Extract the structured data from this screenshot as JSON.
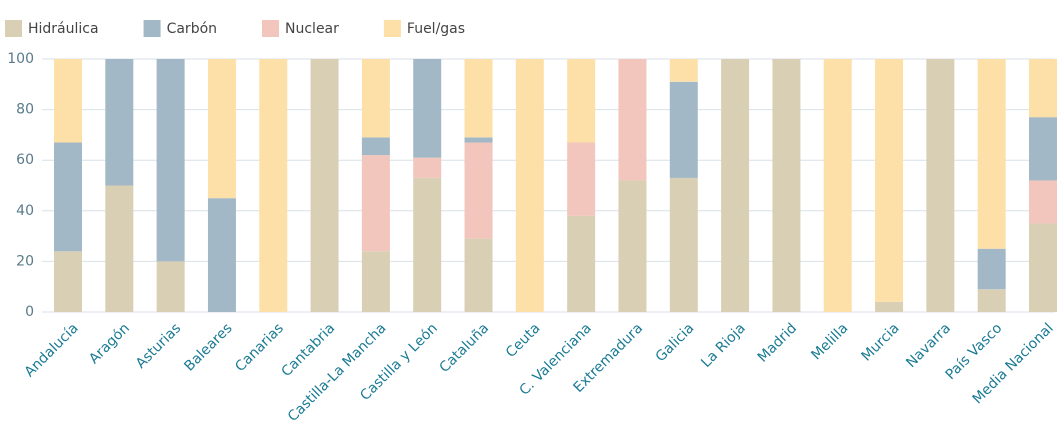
{
  "chart_data": {
    "type": "stacked_bar",
    "categories": [
      "Andalucía",
      "Aragón",
      "Asturias",
      "Baleares",
      "Canarias",
      "Cantabria",
      "Castilla-La Mancha",
      "Castilla y León",
      "Cataluña",
      "Ceuta",
      "C. Valenciana",
      "Extremadura",
      "Galicia",
      "La Rioja",
      "Madrid",
      "Melilla",
      "Murcia",
      "Navarra",
      "País Vasco",
      "Media  Nacional"
    ],
    "series": [
      {
        "name": "Hidráulica",
        "color": "#d9cfb4",
        "values": [
          24,
          50,
          20,
          0,
          0,
          100,
          24,
          53,
          29,
          0,
          38,
          52,
          53,
          100,
          100,
          0,
          4,
          100,
          9,
          35
        ]
      },
      {
        "name": "Carbón",
        "color": "#a3b8c6",
        "values": [
          43,
          50,
          80,
          45,
          0,
          0,
          7,
          39,
          2,
          0,
          0,
          0,
          38,
          0,
          0,
          0,
          0,
          0,
          16,
          25
        ]
      },
      {
        "name": "Nuclear",
        "color": "#f2c6bc",
        "values": [
          0,
          0,
          0,
          0,
          0,
          0,
          38,
          8,
          38,
          0,
          29,
          48,
          0,
          0,
          0,
          0,
          0,
          0,
          0,
          17
        ]
      },
      {
        "name": "Fuel/gas",
        "color": "#fde0a8",
        "values": [
          33,
          0,
          0,
          55,
          100,
          0,
          31,
          0,
          31,
          100,
          33,
          0,
          9,
          0,
          0,
          100,
          96,
          0,
          75,
          23
        ]
      }
    ],
    "ylim": [
      0,
      100
    ],
    "yticks": [
      0,
      20,
      40,
      60,
      80,
      100
    ],
    "grid": true,
    "legend": "top-left"
  }
}
